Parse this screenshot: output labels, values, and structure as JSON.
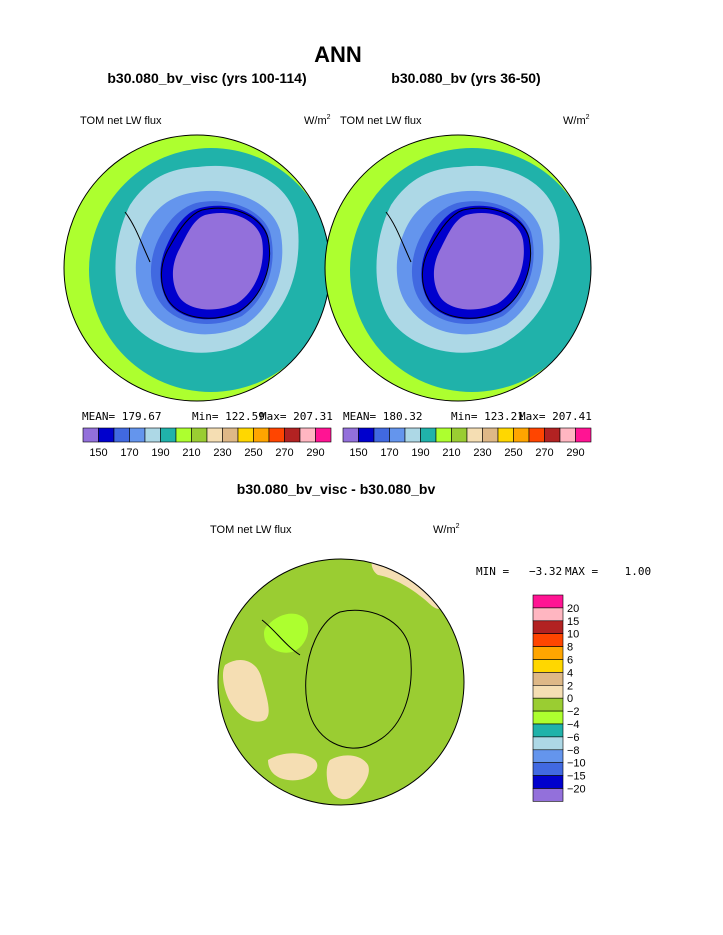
{
  "page": {
    "title": "ANN",
    "diff_title": "b30.080_bv_visc - b30.080_bv"
  },
  "colors": {
    "scale": [
      "#9370db",
      "#0000cd",
      "#4169e1",
      "#6495ed",
      "#add8e6",
      "#20b2aa",
      "#adff2f",
      "#9acd32",
      "#f5deb3",
      "#deb887",
      "#ffd700",
      "#ffa500",
      "#ff4500",
      "#b22222",
      "#ffb6c1",
      "#ff1493"
    ],
    "diff_scale": [
      "#9370db",
      "#0000cd",
      "#4169e1",
      "#6495ed",
      "#add8e6",
      "#20b2aa",
      "#adff2f",
      "#9acd32",
      "#f5deb3",
      "#deb887",
      "#ffd700",
      "#ffa500",
      "#ff4500",
      "#b22222",
      "#ffb6c1",
      "#ff1493"
    ]
  },
  "chart_data": [
    {
      "type": "heatmap",
      "title": "b30.080_bv_visc (yrs 100-114)",
      "variable": "TOM net LW flux",
      "units": "W/m",
      "units_sup": "2",
      "stats": {
        "mean": "MEAN= 179.67",
        "min": "Min= 122.59",
        "max": "Max= 207.31"
      },
      "levels": [
        "150",
        "170",
        "190",
        "210",
        "230",
        "250",
        "270",
        "290"
      ]
    },
    {
      "type": "heatmap",
      "title": "b30.080_bv (yrs 36-50)",
      "variable": "TOM net LW flux",
      "units": "W/m",
      "units_sup": "2",
      "stats": {
        "mean": "MEAN= 180.32",
        "min": "Min= 123.21",
        "max": "Max= 207.41"
      },
      "levels": [
        "150",
        "170",
        "190",
        "210",
        "230",
        "250",
        "270",
        "290"
      ]
    },
    {
      "type": "heatmap",
      "title": "b30.080_bv_visc - b30.080_bv",
      "variable": "TOM net LW flux",
      "units": "W/m",
      "units_sup": "2",
      "stats": {
        "min": "MIN =   −3.32",
        "max": "MAX =    1.00"
      },
      "levels": [
        "20",
        "15",
        "10",
        "8",
        "6",
        "4",
        "2",
        "0",
        "−2",
        "−4",
        "−6",
        "−8",
        "−10",
        "−15",
        "−20"
      ]
    }
  ]
}
